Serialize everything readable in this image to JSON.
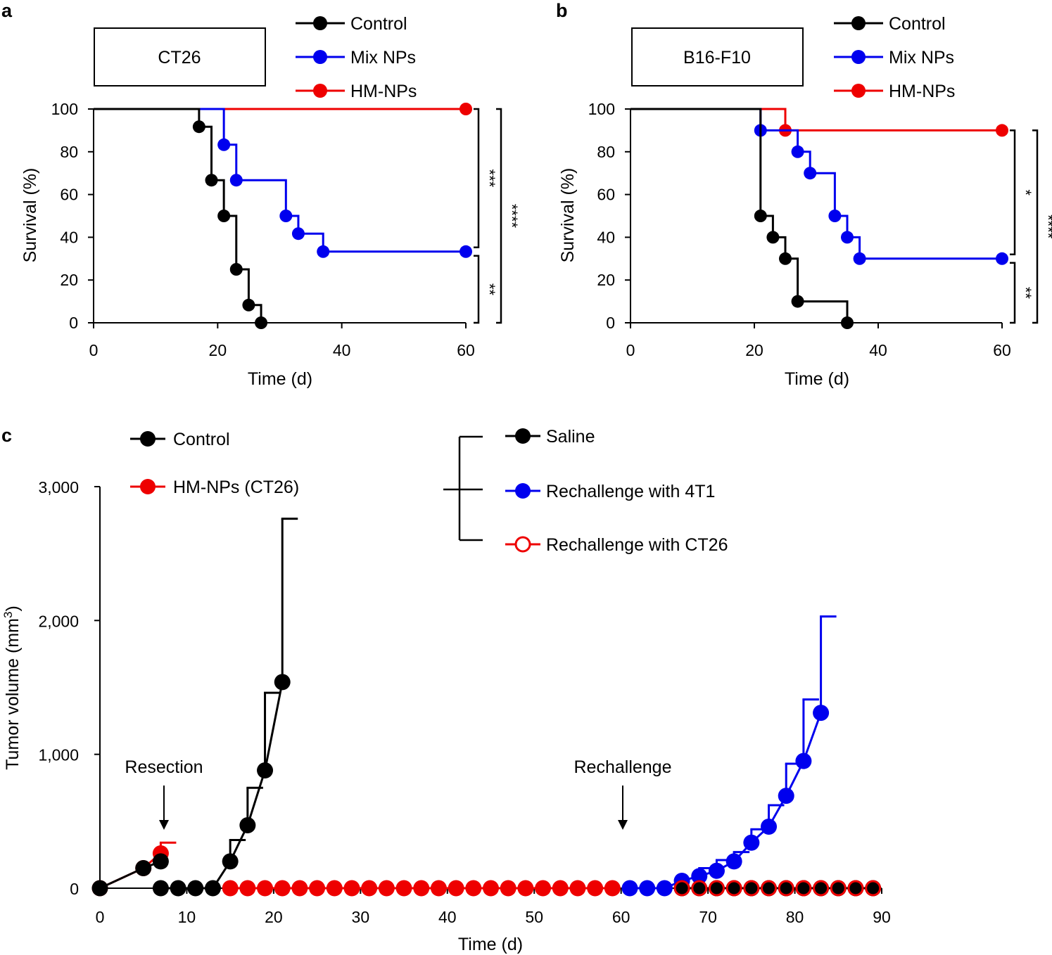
{
  "chart_data": [
    {
      "panel": "a",
      "type": "line",
      "step": true,
      "box_label": "CT26",
      "xlabel": "Time (d)",
      "ylabel": "Survival (%)",
      "xlim": [
        0,
        60
      ],
      "ylim": [
        0,
        100
      ],
      "xticks": [
        0,
        20,
        40,
        60
      ],
      "yticks": [
        0,
        20,
        40,
        60,
        80,
        100
      ],
      "series": [
        {
          "name": "Control",
          "color": "#000000",
          "steps": [
            [
              0,
              100
            ],
            [
              17,
              91.7
            ],
            [
              19,
              66.7
            ],
            [
              21,
              50
            ],
            [
              23,
              25
            ],
            [
              25,
              8.3
            ],
            [
              27,
              0
            ]
          ],
          "markers": [
            [
              17,
              91.7
            ],
            [
              19,
              66.7
            ],
            [
              21,
              50
            ],
            [
              23,
              25
            ],
            [
              25,
              8.3
            ],
            [
              27,
              0
            ]
          ]
        },
        {
          "name": "Mix NPs",
          "color": "#0000ee",
          "steps": [
            [
              0,
              100
            ],
            [
              21,
              83.3
            ],
            [
              23,
              66.7
            ],
            [
              31,
              50
            ],
            [
              33,
              41.7
            ],
            [
              37,
              33.3
            ],
            [
              60,
              33.3
            ]
          ],
          "markers": [
            [
              21,
              83.3
            ],
            [
              23,
              66.7
            ],
            [
              31,
              50
            ],
            [
              33,
              41.7
            ],
            [
              37,
              33.3
            ],
            [
              60,
              33.3
            ]
          ]
        },
        {
          "name": "HM-NPs",
          "color": "#ee0000",
          "steps": [
            [
              0,
              100
            ],
            [
              60,
              100
            ]
          ],
          "markers": [
            [
              60,
              100
            ]
          ]
        }
      ],
      "significance": [
        {
          "label": "***",
          "from": 100,
          "to": 33.3
        },
        {
          "label": "**",
          "from": 33.3,
          "to": 0
        },
        {
          "label": "****",
          "from": 100,
          "to": 0
        }
      ]
    },
    {
      "panel": "b",
      "type": "line",
      "step": true,
      "box_label": "B16-F10",
      "xlabel": "Time (d)",
      "ylabel": "Survival (%)",
      "xlim": [
        0,
        60
      ],
      "ylim": [
        0,
        100
      ],
      "xticks": [
        0,
        20,
        40,
        60
      ],
      "yticks": [
        0,
        20,
        40,
        60,
        80,
        100
      ],
      "series": [
        {
          "name": "Control",
          "color": "#000000",
          "steps": [
            [
              0,
              100
            ],
            [
              21,
              50
            ],
            [
              23,
              40
            ],
            [
              25,
              30
            ],
            [
              27,
              10
            ],
            [
              35,
              0
            ]
          ],
          "markers": [
            [
              21,
              50
            ],
            [
              23,
              40
            ],
            [
              25,
              30
            ],
            [
              27,
              10
            ],
            [
              35,
              0
            ]
          ]
        },
        {
          "name": "Mix NPs",
          "color": "#0000ee",
          "steps": [
            [
              0,
              100
            ],
            [
              21,
              90
            ],
            [
              27,
              80
            ],
            [
              29,
              70
            ],
            [
              33,
              50
            ],
            [
              35,
              40
            ],
            [
              37,
              30
            ],
            [
              60,
              30
            ]
          ],
          "markers": [
            [
              21,
              90
            ],
            [
              27,
              80
            ],
            [
              29,
              70
            ],
            [
              33,
              50
            ],
            [
              35,
              40
            ],
            [
              37,
              30
            ],
            [
              60,
              30
            ]
          ]
        },
        {
          "name": "HM-NPs",
          "color": "#ee0000",
          "steps": [
            [
              0,
              100
            ],
            [
              25,
              90
            ],
            [
              60,
              90
            ]
          ],
          "markers": [
            [
              25,
              90
            ],
            [
              60,
              90
            ]
          ]
        }
      ],
      "significance": [
        {
          "label": "*",
          "from": 90,
          "to": 30
        },
        {
          "label": "**",
          "from": 30,
          "to": 0
        },
        {
          "label": "****",
          "from": 90,
          "to": 0
        }
      ]
    },
    {
      "panel": "c",
      "type": "line",
      "xlabel": "Time (d)",
      "ylabel": "Tumor volume (mm",
      "ylabel_superscript": "3",
      "ylabel_close": ")",
      "xlim": [
        0,
        90
      ],
      "ylim": [
        0,
        3000
      ],
      "xticks": [
        0,
        10,
        20,
        30,
        40,
        50,
        60,
        70,
        80,
        90
      ],
      "yticks": [
        0,
        1000,
        2000,
        3000
      ],
      "ytick_labels": [
        "0",
        "1,000",
        "2,000",
        "3,000"
      ],
      "legend_left": [
        "Control",
        "HM-NPs (CT26)"
      ],
      "legend_right": [
        "Saline",
        "Rechallenge with 4T1",
        "Rechallenge with CT26"
      ],
      "series": [
        {
          "name": "Control",
          "color": "#000000",
          "marker": "filled",
          "x": [
            0,
            5,
            7
          ],
          "y": [
            0,
            150,
            200
          ],
          "err": [
            0,
            0,
            0
          ]
        },
        {
          "name": "HM-NPs (CT26)",
          "color": "#ee0000",
          "marker": "filled",
          "x": [
            0,
            5,
            7
          ],
          "y": [
            0,
            150,
            260
          ],
          "err": [
            0,
            0,
            80
          ]
        },
        {
          "name": "Saline",
          "color": "#000000",
          "marker": "filled",
          "x": [
            7,
            9,
            11,
            13,
            15,
            17,
            19,
            21
          ],
          "y": [
            0,
            0,
            0,
            0,
            200,
            470,
            880,
            1540
          ],
          "err": [
            0,
            0,
            0,
            0,
            160,
            280,
            580,
            1220
          ]
        },
        {
          "name": "HM-NPs (CT26) post-resection",
          "color": "#ee0000",
          "marker": "filled",
          "x": [
            15,
            17,
            19,
            21,
            23,
            25,
            27,
            29,
            31,
            33,
            35,
            37,
            39,
            41,
            43,
            45,
            47,
            49,
            51,
            53,
            55,
            57,
            59
          ],
          "y": [
            0,
            0,
            0,
            0,
            0,
            0,
            0,
            0,
            0,
            0,
            0,
            0,
            0,
            0,
            0,
            0,
            0,
            0,
            0,
            0,
            0,
            0,
            0
          ]
        },
        {
          "name": "Rechallenge with 4T1",
          "color": "#0000ee",
          "marker": "filled",
          "x": [
            61,
            63,
            65,
            67,
            69,
            71,
            73,
            75,
            77,
            79,
            81,
            83
          ],
          "y": [
            0,
            0,
            0,
            55,
            90,
            130,
            200,
            340,
            460,
            690,
            950,
            1310
          ],
          "err": [
            0,
            0,
            0,
            0,
            60,
            80,
            70,
            100,
            160,
            240,
            460,
            720
          ]
        },
        {
          "name": "Saline (late)",
          "color": "#000000",
          "marker": "filled",
          "x": [
            67,
            69,
            71,
            73,
            75,
            77,
            79,
            81,
            83,
            85,
            87,
            89
          ],
          "y": [
            0,
            0,
            0,
            0,
            0,
            0,
            0,
            0,
            0,
            0,
            0,
            0
          ]
        },
        {
          "name": "Rechallenge with CT26",
          "color": "#ee0000",
          "marker": "open",
          "x": [
            67,
            69,
            71,
            73,
            75,
            77,
            79,
            81,
            83,
            85,
            87,
            89
          ],
          "y": [
            0,
            0,
            0,
            0,
            0,
            0,
            0,
            0,
            0,
            0,
            0,
            0
          ]
        }
      ],
      "annotations": [
        {
          "text": "Resection",
          "x": 7
        },
        {
          "text": "Rechallenge",
          "x": 60
        }
      ]
    }
  ]
}
